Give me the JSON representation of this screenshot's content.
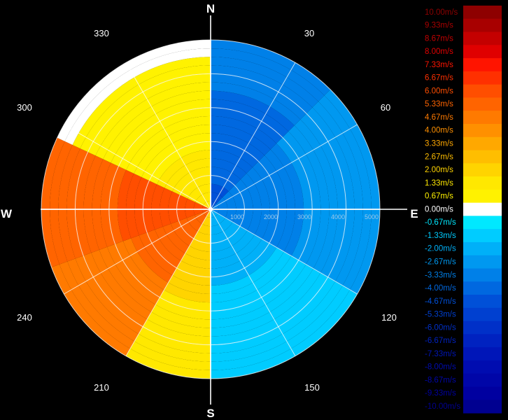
{
  "chart_data": {
    "type": "heatmap",
    "subtype": "polar radar radial-velocity display",
    "title": "",
    "cardinals": [
      "N",
      "E",
      "S",
      "W"
    ],
    "azimuth_labels": [
      "30",
      "60",
      "120",
      "150",
      "210",
      "240",
      "300",
      "330"
    ],
    "range_labels": [
      "1000",
      "2000",
      "3000",
      "4000",
      "5000"
    ],
    "range_rings_count": 5,
    "grid": true,
    "colorbar": {
      "placement": "right",
      "unit": "m/s",
      "labels": [
        "10.00m/s",
        "9.33m/s",
        "8.67m/s",
        "8.00m/s",
        "7.33m/s",
        "6.67m/s",
        "6.00m/s",
        "5.33m/s",
        "4.67m/s",
        "4.00m/s",
        "3.33m/s",
        "2.67m/s",
        "2.00m/s",
        "1.33m/s",
        "0.67m/s",
        "0.00m/s",
        "-0.67m/s",
        "-1.33m/s",
        "-2.00m/s",
        "-2.67m/s",
        "-3.33m/s",
        "-4.00m/s",
        "-4.67m/s",
        "-5.33m/s",
        "-6.00m/s",
        "-6.67m/s",
        "-7.33m/s",
        "-8.00m/s",
        "-8.67m/s",
        "-9.33m/s",
        "-10.00m/s"
      ],
      "colors": [
        "#8e0000",
        "#a80000",
        "#c40000",
        "#e00000",
        "#ff1400",
        "#ff3000",
        "#ff4e00",
        "#ff6400",
        "#ff7a00",
        "#ff9000",
        "#ffa800",
        "#ffbe00",
        "#ffd400",
        "#ffe800",
        "#fff200",
        "#ffffff",
        "#00e8ff",
        "#00ccff",
        "#00b0f8",
        "#0098f0",
        "#0080e8",
        "#0068e0",
        "#0050d8",
        "#0040d0",
        "#0030c8",
        "#0022c0",
        "#0016b8",
        "#000cb0",
        "#0006a8",
        "#0000a0",
        "#000090"
      ]
    },
    "sectors": [
      {
        "from_deg": 0,
        "to_deg": 45,
        "velocity_mps": -4.5
      },
      {
        "from_deg": 45,
        "to_deg": 120,
        "velocity_mps": -3.6
      },
      {
        "from_deg": 120,
        "to_deg": 180,
        "velocity_mps": -2.2
      },
      {
        "from_deg": 180,
        "to_deg": 210,
        "velocity_mps": 2.3
      },
      {
        "from_deg": 210,
        "to_deg": 250,
        "velocity_mps": 5.6
      },
      {
        "from_deg": 250,
        "to_deg": 295,
        "velocity_mps": 6.3
      },
      {
        "from_deg": 295,
        "to_deg": 360,
        "velocity_mps": 1.4
      }
    ]
  }
}
